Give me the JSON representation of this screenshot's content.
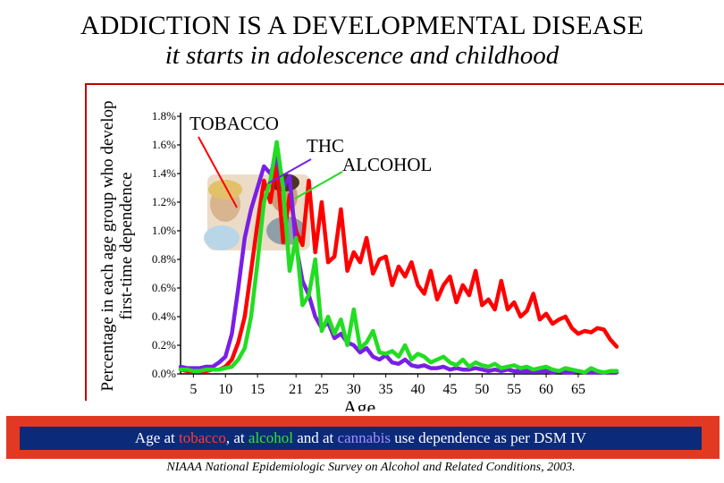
{
  "slide": {
    "title": "ADDICTION IS A DEVELOPMENTAL DISEASE",
    "subtitle": "it starts in adolescence and childhood",
    "caption": {
      "prefix": "Age at ",
      "tobacco": "tobacco",
      "sep1": ", at ",
      "alcohol": "alcohol",
      "sep2": " and at ",
      "cannabis": "cannabis",
      "suffix": " use dependence as per DSM IV"
    },
    "source": "NIAAA National Epidemiologic Survey on Alcohol and Related Conditions, 2003.",
    "colors": {
      "accent_red": "#e23a22",
      "caption_blue": "#0b2a7a"
    }
  },
  "chart_data": {
    "type": "line",
    "title": "",
    "ylabel": "Percentage in each age group who develop first-time dependence",
    "xlabel": "Age",
    "xlim": [
      3,
      71
    ],
    "ylim": [
      0,
      1.8
    ],
    "x_ticks": [
      5,
      10,
      15,
      21,
      25,
      30,
      35,
      40,
      45,
      50,
      55,
      60,
      65
    ],
    "y_ticks": [
      {
        "value": 0.0,
        "label": "0.0%"
      },
      {
        "value": 0.2,
        "label": "0.2%"
      },
      {
        "value": 0.4,
        "label": "0.4%"
      },
      {
        "value": 0.6,
        "label": "0.6%"
      },
      {
        "value": 0.8,
        "label": "0.8%"
      },
      {
        "value": 1.0,
        "label": "1.0%"
      },
      {
        "value": 1.2,
        "label": "1.2%"
      },
      {
        "value": 1.4,
        "label": "1.4%"
      },
      {
        "value": 1.6,
        "label": "1.6%"
      },
      {
        "value": 1.8,
        "label": "1.8%"
      }
    ],
    "series": [
      {
        "name": "TOBACCO",
        "color": "#ff0000",
        "x": [
          3,
          4,
          5,
          6,
          7,
          8,
          9,
          10,
          11,
          12,
          13,
          14,
          15,
          16,
          17,
          18,
          19,
          20,
          21,
          22,
          23,
          24,
          25,
          26,
          27,
          28,
          29,
          30,
          31,
          32,
          33,
          34,
          35,
          36,
          37,
          38,
          39,
          40,
          41,
          42,
          43,
          44,
          45,
          46,
          47,
          48,
          49,
          50,
          51,
          52,
          53,
          54,
          55,
          56,
          57,
          58,
          59,
          60,
          61,
          62,
          63,
          64,
          65,
          66,
          67,
          68,
          69,
          70,
          71
        ],
        "y": [
          0.03,
          0.02,
          0.02,
          0.02,
          0.02,
          0.03,
          0.03,
          0.05,
          0.1,
          0.22,
          0.4,
          0.72,
          1.05,
          1.35,
          1.2,
          1.48,
          0.92,
          1.25,
          1.0,
          0.9,
          1.35,
          0.85,
          1.2,
          0.78,
          0.82,
          1.15,
          0.72,
          0.85,
          0.78,
          0.95,
          0.7,
          0.8,
          0.82,
          0.62,
          0.75,
          0.68,
          0.78,
          0.62,
          0.56,
          0.72,
          0.52,
          0.62,
          0.68,
          0.5,
          0.62,
          0.55,
          0.72,
          0.48,
          0.52,
          0.45,
          0.65,
          0.45,
          0.5,
          0.4,
          0.44,
          0.56,
          0.38,
          0.42,
          0.35,
          0.38,
          0.4,
          0.32,
          0.28,
          0.3,
          0.29,
          0.32,
          0.31,
          0.24,
          0.19
        ]
      },
      {
        "name": "THC",
        "color": "#7a1fe6",
        "x": [
          3,
          4,
          5,
          6,
          7,
          8,
          9,
          10,
          11,
          12,
          13,
          14,
          15,
          16,
          17,
          18,
          19,
          20,
          21,
          22,
          23,
          24,
          25,
          26,
          27,
          28,
          29,
          30,
          31,
          32,
          33,
          34,
          35,
          36,
          37,
          38,
          39,
          40,
          41,
          42,
          43,
          44,
          45,
          46,
          47,
          48,
          49,
          50,
          51,
          52,
          53,
          54,
          55,
          56,
          57,
          58,
          59,
          60,
          61,
          62,
          63,
          64,
          65,
          66,
          67,
          68,
          69,
          70,
          71
        ],
        "y": [
          0.05,
          0.04,
          0.04,
          0.04,
          0.05,
          0.05,
          0.08,
          0.12,
          0.28,
          0.6,
          0.95,
          1.15,
          1.3,
          1.45,
          1.4,
          1.52,
          1.3,
          1.38,
          0.9,
          0.65,
          0.55,
          0.4,
          0.32,
          0.36,
          0.25,
          0.28,
          0.22,
          0.2,
          0.15,
          0.18,
          0.12,
          0.1,
          0.13,
          0.08,
          0.07,
          0.1,
          0.06,
          0.05,
          0.06,
          0.04,
          0.04,
          0.05,
          0.03,
          0.04,
          0.03,
          0.03,
          0.04,
          0.03,
          0.02,
          0.03,
          0.02,
          0.03,
          0.02,
          0.02,
          0.02,
          0.02,
          0.02,
          0.02,
          0.01,
          0.02,
          0.01,
          0.01,
          0.02,
          0.01,
          0.01,
          0.01,
          0.01,
          0.01,
          0.01
        ]
      },
      {
        "name": "ALCOHOL",
        "color": "#22dd22",
        "x": [
          3,
          4,
          5,
          6,
          7,
          8,
          9,
          10,
          11,
          12,
          13,
          14,
          15,
          16,
          17,
          18,
          19,
          20,
          21,
          22,
          23,
          24,
          25,
          26,
          27,
          28,
          29,
          30,
          31,
          32,
          33,
          34,
          35,
          36,
          37,
          38,
          39,
          40,
          41,
          42,
          43,
          44,
          45,
          46,
          47,
          48,
          49,
          50,
          51,
          52,
          53,
          54,
          55,
          56,
          57,
          58,
          59,
          60,
          61,
          62,
          63,
          64,
          65,
          66,
          67,
          68,
          69,
          70,
          71
        ],
        "y": [
          0.03,
          0.03,
          0.02,
          0.02,
          0.03,
          0.03,
          0.03,
          0.04,
          0.05,
          0.1,
          0.18,
          0.4,
          0.78,
          1.2,
          1.35,
          1.62,
          1.3,
          0.72,
          0.95,
          0.48,
          0.55,
          0.8,
          0.3,
          0.4,
          0.28,
          0.38,
          0.2,
          0.45,
          0.18,
          0.22,
          0.3,
          0.15,
          0.14,
          0.16,
          0.12,
          0.2,
          0.1,
          0.14,
          0.12,
          0.08,
          0.1,
          0.12,
          0.08,
          0.06,
          0.1,
          0.05,
          0.08,
          0.06,
          0.05,
          0.07,
          0.04,
          0.05,
          0.06,
          0.04,
          0.05,
          0.03,
          0.04,
          0.05,
          0.03,
          0.02,
          0.04,
          0.03,
          0.02,
          0.01,
          0.04,
          0.02,
          0.01,
          0.02,
          0.02
        ]
      }
    ],
    "annotations": [
      {
        "text": "TOBACCO",
        "points_to": "TOBACCO"
      },
      {
        "text": "THC",
        "points_to": "THC"
      },
      {
        "text": "ALCOHOL",
        "points_to": "ALCOHOL"
      }
    ]
  }
}
